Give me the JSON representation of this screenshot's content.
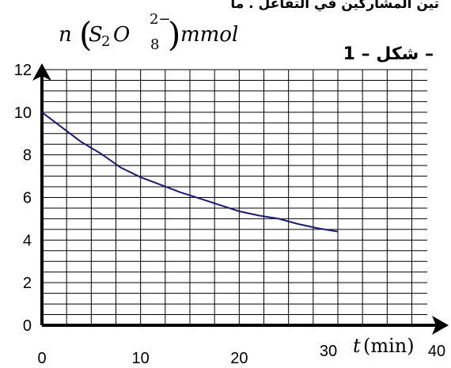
{
  "header_text": "تين المشاركين في التفاعل . ما",
  "figure_label": "شكل – 1 –",
  "chart_data": {
    "type": "line",
    "ylabel": {
      "n": "n",
      "species_S": "S",
      "sub_2": "2",
      "species_O": "O",
      "sub_8": "8",
      "charge": "2−",
      "unit": "mmol"
    },
    "xlabel": {
      "t": "t",
      "unit": "(min)"
    },
    "xlim": [
      0,
      40
    ],
    "ylim": [
      0,
      12
    ],
    "x_ticks": [
      "0",
      "10",
      "20",
      "30",
      "40"
    ],
    "y_ticks": [
      "0",
      "2",
      "4",
      "6",
      "8",
      "10",
      "12"
    ],
    "grid": true,
    "series": [
      {
        "color": "#1a1a6e",
        "x": [
          0,
          2,
          4,
          6,
          8,
          10,
          12,
          14,
          16,
          18,
          20,
          22,
          24,
          26,
          28,
          30
        ],
        "y": [
          10.0,
          9.3,
          8.6,
          8.05,
          7.4,
          6.95,
          6.6,
          6.25,
          5.95,
          5.65,
          5.35,
          5.15,
          5.0,
          4.75,
          4.55,
          4.4
        ]
      }
    ]
  }
}
